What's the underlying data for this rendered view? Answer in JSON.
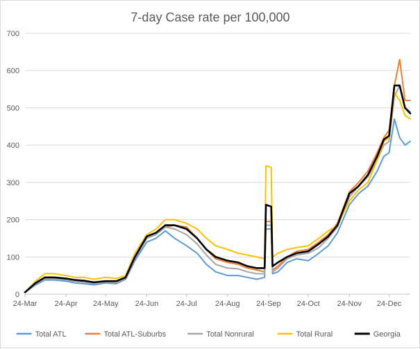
{
  "chart_data": {
    "type": "line",
    "title": "7-day Case rate per 100,000",
    "xlabel": "",
    "ylabel": "",
    "ylim": [
      0,
      700
    ],
    "yticks": [
      0,
      100,
      200,
      300,
      400,
      500,
      600,
      700
    ],
    "grid": true,
    "legend_position": "bottom",
    "x": [
      "24-Mar",
      "1-Apr",
      "8-Apr",
      "15-Apr",
      "24-Apr",
      "1-May",
      "8-May",
      "15-May",
      "24-May",
      "1-Jun",
      "8-Jun",
      "15-Jun",
      "24-Jun",
      "1-Jul",
      "8-Jul",
      "15-Jul",
      "24-Jul",
      "1-Aug",
      "8-Aug",
      "15-Aug",
      "24-Aug",
      "1-Sep",
      "8-Sep",
      "15-Sep",
      "21-Sep",
      "22-Sep",
      "26-Sep",
      "27-Sep",
      "1-Oct",
      "8-Oct",
      "15-Oct",
      "24-Oct",
      "1-Nov",
      "8-Nov",
      "15-Nov",
      "24-Nov",
      "1-Dec",
      "8-Dec",
      "15-Dec",
      "20-Dec",
      "24-Dec",
      "28-Dec",
      "1-Jan",
      "5-Jan",
      "9-Jan"
    ],
    "xtick_labels": [
      "24-Mar",
      "24-Apr",
      "24-May",
      "24-Jun",
      "24-Jul",
      "24-Aug",
      "24-Sep",
      "24-Oct",
      "24-Nov",
      "24-Dec"
    ],
    "series": [
      {
        "name": "Total ATL",
        "color": "#5b9bd5",
        "values": [
          5,
          25,
          38,
          38,
          35,
          30,
          28,
          25,
          30,
          28,
          40,
          90,
          140,
          150,
          170,
          150,
          130,
          110,
          80,
          60,
          50,
          50,
          45,
          40,
          45,
          175,
          175,
          55,
          60,
          85,
          95,
          90,
          110,
          130,
          165,
          240,
          270,
          290,
          330,
          370,
          380,
          470,
          420,
          400,
          410
        ]
      },
      {
        "name": "Total ATL-Suburbs",
        "color": "#ed7d31",
        "values": [
          5,
          30,
          42,
          45,
          42,
          38,
          35,
          30,
          32,
          35,
          45,
          100,
          155,
          165,
          180,
          185,
          180,
          150,
          120,
          95,
          85,
          80,
          70,
          65,
          60,
          195,
          195,
          65,
          75,
          100,
          115,
          120,
          140,
          160,
          190,
          275,
          300,
          330,
          380,
          420,
          440,
          560,
          630,
          520,
          520
        ]
      },
      {
        "name": "Total Nonrural",
        "color": "#a5a5a5",
        "values": [
          5,
          28,
          40,
          42,
          38,
          35,
          32,
          28,
          32,
          30,
          42,
          95,
          150,
          160,
          180,
          175,
          160,
          135,
          105,
          80,
          70,
          68,
          60,
          55,
          55,
          185,
          185,
          60,
          70,
          95,
          105,
          110,
          125,
          150,
          180,
          260,
          290,
          315,
          360,
          400,
          410,
          530,
          560,
          500,
          490
        ]
      },
      {
        "name": "Total Rural",
        "color": "#ffc000",
        "values": [
          5,
          35,
          55,
          55,
          50,
          45,
          45,
          40,
          45,
          42,
          50,
          110,
          160,
          175,
          200,
          200,
          190,
          175,
          150,
          130,
          120,
          110,
          105,
          100,
          95,
          345,
          340,
          100,
          110,
          120,
          125,
          130,
          150,
          170,
          185,
          250,
          280,
          300,
          360,
          410,
          420,
          540,
          520,
          480,
          470
        ]
      },
      {
        "name": "Georgia",
        "color": "#000000",
        "values": [
          5,
          30,
          45,
          45,
          42,
          38,
          36,
          32,
          35,
          35,
          45,
          100,
          155,
          165,
          185,
          185,
          175,
          150,
          120,
          100,
          90,
          85,
          75,
          70,
          70,
          240,
          235,
          75,
          85,
          100,
          110,
          115,
          135,
          155,
          185,
          270,
          290,
          320,
          370,
          415,
          425,
          560,
          560,
          500,
          485
        ]
      }
    ]
  }
}
